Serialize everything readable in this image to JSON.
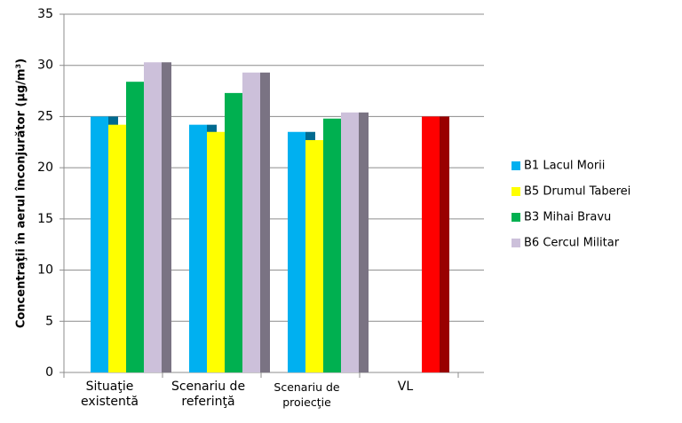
{
  "chart_data": {
    "type": "bar",
    "y_label": "Concentraţii în aerul înconjurător (µg/m³)",
    "categories": [
      "Situaţie\nexistentă",
      "Scenariu de\nreferinţă",
      "Scenariu de\nproiecţie",
      "VL"
    ],
    "series": [
      {
        "name": "B1 Lacul Morii",
        "color": "#00b0f0",
        "values": [
          25,
          24.2,
          23.5,
          null
        ]
      },
      {
        "name": "B5 Drumul Taberei",
        "color": "#ffff00",
        "values": [
          24.2,
          23.5,
          22.7,
          null
        ]
      },
      {
        "name": "B3 Mihai Bravu",
        "color": "#00b050",
        "point_colors": [
          null,
          null,
          null,
          "#ff0000"
        ],
        "values": [
          28.4,
          27.3,
          24.8,
          25
        ]
      },
      {
        "name": "B6 Cercul Militar",
        "color": "#ccc0da",
        "values": [
          30.3,
          29.3,
          25.4,
          null
        ]
      }
    ],
    "ylim": [
      0,
      35
    ],
    "yticks": [
      0,
      5,
      10,
      15,
      20,
      25,
      30,
      35
    ],
    "grid": true,
    "legend": "right"
  }
}
